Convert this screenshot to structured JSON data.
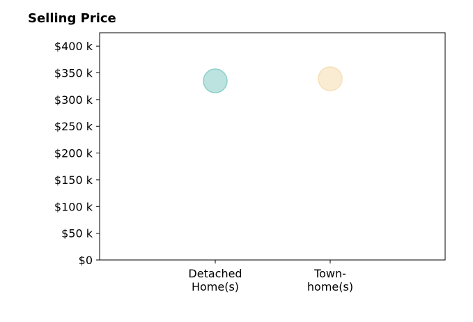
{
  "chart_data": {
    "type": "scatter",
    "title": "Selling Price",
    "categories": [
      "Detached\nHome(s)",
      "Town-\nhome(s)"
    ],
    "values": [
      335000,
      339000
    ],
    "point_colors": [
      "#8fd0cc",
      "#f6e0b5"
    ],
    "ylim": [
      0,
      425000
    ],
    "y_ticks": [
      0,
      50000,
      100000,
      150000,
      200000,
      250000,
      300000,
      350000,
      400000
    ],
    "y_tick_labels": [
      "$0",
      "$50 k",
      "$100 k",
      "$150 k",
      "$200 k",
      "$250 k",
      "$300 k",
      "$350 k",
      "$400 k"
    ],
    "xlabel": "",
    "ylabel": "",
    "grid": false,
    "legend": false
  }
}
